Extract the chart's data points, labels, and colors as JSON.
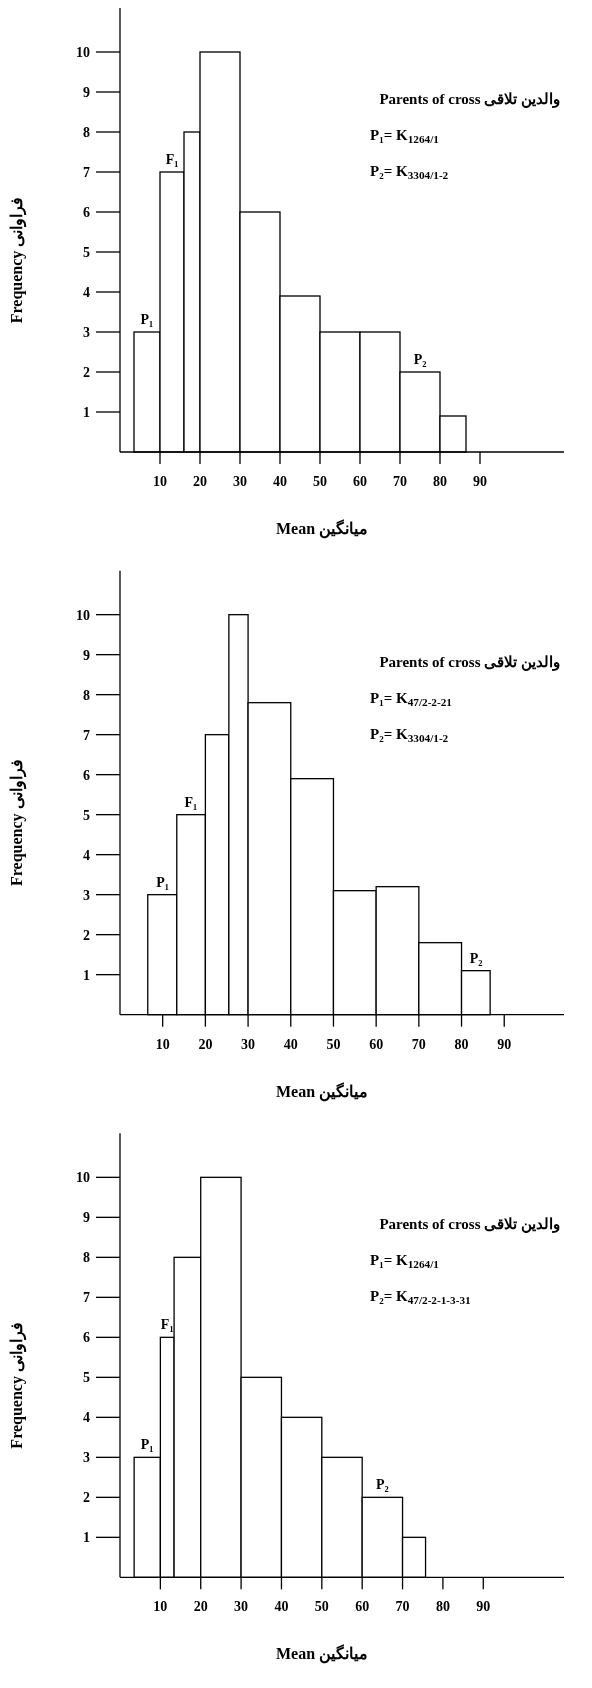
{
  "chart_data": [
    {
      "type": "histogram",
      "bins": [
        3.5,
        10,
        16,
        20,
        30,
        40,
        50,
        60,
        70,
        80,
        86.5
      ],
      "values": [
        3,
        7,
        8,
        10,
        6,
        3.9,
        3,
        3,
        2,
        0.9
      ],
      "color": "#ffffff",
      "xlabel": "Mean میانگین",
      "ylabel": "Frequency فراوانی",
      "xlim": [
        0,
        111
      ],
      "ylim": [
        0,
        11.1
      ],
      "xticks": [
        10,
        20,
        30,
        40,
        50,
        60,
        70,
        80,
        90
      ],
      "yticks": [
        1,
        2,
        3,
        4,
        5,
        6,
        7,
        8,
        9,
        10
      ],
      "annotations": [
        {
          "text": "P₁",
          "x": 6.7,
          "y": 3
        },
        {
          "text": "F₁",
          "x": 13,
          "y": 7
        },
        {
          "text": "P₂",
          "x": 75,
          "y": 2
        },
        "Parents of cross والدین تلاقی",
        "P₁= K$_{1264/1}$",
        "P₂= K$_{3304/1-2}$"
      ]
    },
    {
      "type": "histogram",
      "bins": [
        6.5,
        13.3,
        20,
        25.5,
        30,
        40,
        50,
        60,
        70,
        80,
        86.7
      ],
      "values": [
        3,
        5,
        7,
        10,
        7.8,
        5.9,
        3.1,
        3.2,
        1.8,
        1.1
      ],
      "color": "#ffffff",
      "xlabel": "Mean میانگین",
      "ylabel": "Frequency فراوانی",
      "xlim": [
        0,
        104
      ],
      "ylim": [
        0,
        11.1
      ],
      "xticks": [
        10,
        20,
        30,
        40,
        50,
        60,
        70,
        80,
        90
      ],
      "yticks": [
        1,
        2,
        3,
        4,
        5,
        6,
        7,
        8,
        9,
        10
      ],
      "annotations": [
        {
          "text": "P₁",
          "x": 10,
          "y": 3
        },
        {
          "text": "F₁",
          "x": 16.6,
          "y": 5
        },
        {
          "text": "P₂",
          "x": 83.4,
          "y": 1.1
        },
        "Parents of cross والدین تلاقی",
        "P₁= K$_{47/2-2-21}$",
        "P₂= K$_{3304/1-2}$"
      ]
    },
    {
      "type": "histogram",
      "bins": [
        3.5,
        10,
        13.4,
        20,
        30,
        40,
        50,
        60,
        70,
        75.7
      ],
      "values": [
        3,
        6,
        8,
        10,
        5,
        4,
        3,
        2,
        1
      ],
      "color": "#ffffff",
      "xlabel": "Mean میانگین",
      "ylabel": "Frequency فراوانی",
      "xlim": [
        0,
        110
      ],
      "ylim": [
        0,
        11.1
      ],
      "xticks": [
        10,
        20,
        30,
        40,
        50,
        60,
        70,
        80,
        90
      ],
      "yticks": [
        1,
        2,
        3,
        4,
        5,
        6,
        7,
        8,
        9,
        10
      ],
      "annotations": [
        {
          "text": "P₁",
          "x": 6.7,
          "y": 3
        },
        {
          "text": "F₁",
          "x": 11.7,
          "y": 6
        },
        {
          "text": "P₂",
          "x": 65,
          "y": 2
        },
        "Parents of cross والدین تلاقی",
        "P₁= K$_{1264/1}$",
        "P₂= K$_{47/2-2-1-3-31}$"
      ]
    }
  ]
}
